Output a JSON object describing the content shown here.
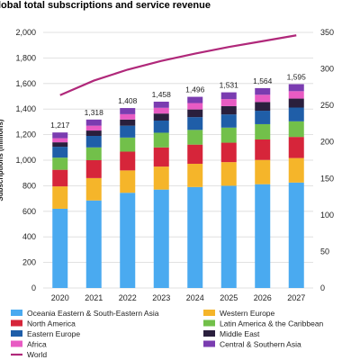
{
  "chart_data": {
    "type": "bar",
    "title": "lobal total subscriptions  and service revenue",
    "ylabel": "Subscriptions (millions)",
    "categories": [
      "2020",
      "2021",
      "2022",
      "2023",
      "2024",
      "2025",
      "2026",
      "2027"
    ],
    "totals": [
      "1,217",
      "1,318",
      "1,408",
      "1,458",
      "1,496",
      "1,531",
      "1,564",
      "1,595"
    ],
    "ylim_left": [
      0,
      2000
    ],
    "left_ticks": [
      "0",
      "200",
      "400",
      "600",
      "800",
      "1,000",
      "1,200",
      "1,400",
      "1,600",
      "1,800",
      "2,000"
    ],
    "ylim_right": [
      0,
      350
    ],
    "right_ticks": [
      "0",
      "50",
      "100",
      "150",
      "200",
      "250",
      "300",
      "350"
    ],
    "series": [
      {
        "name": "Oceania Eastern & South-Eastern Asia",
        "color": "#4aaaf0",
        "values": [
          620,
          685,
          745,
          770,
          790,
          800,
          812,
          825
        ]
      },
      {
        "name": "Western Europe",
        "color": "#f5b52a",
        "values": [
          175,
          175,
          175,
          180,
          182,
          185,
          190,
          192
        ]
      },
      {
        "name": "North America",
        "color": "#d6253a",
        "values": [
          130,
          140,
          147,
          150,
          150,
          152,
          160,
          165
        ]
      },
      {
        "name": "Latin America & the Caribbean",
        "color": "#72c04a",
        "values": [
          95,
          100,
          110,
          115,
          115,
          118,
          120,
          122
        ]
      },
      {
        "name": "Eastern Europe",
        "color": "#1f5ea8",
        "values": [
          85,
          90,
          93,
          95,
          100,
          103,
          105,
          108
        ]
      },
      {
        "name": "Middle East",
        "color": "#2a1f3d",
        "values": [
          35,
          42,
          48,
          55,
          60,
          65,
          68,
          70
        ]
      },
      {
        "name": "Africa",
        "color": "#e85bc3",
        "values": [
          32,
          38,
          42,
          45,
          50,
          55,
          57,
          58
        ]
      },
      {
        "name": "Central & Southern Asia",
        "color": "#7a3cb0",
        "values": [
          45,
          48,
          48,
          48,
          49,
          53,
          52,
          55
        ]
      }
    ],
    "line": {
      "name": "World",
      "color": "#b0287a",
      "axis": "right",
      "values": [
        264,
        284,
        299,
        311,
        321,
        330,
        338,
        346
      ]
    },
    "grid": true,
    "legend": "bottom"
  }
}
